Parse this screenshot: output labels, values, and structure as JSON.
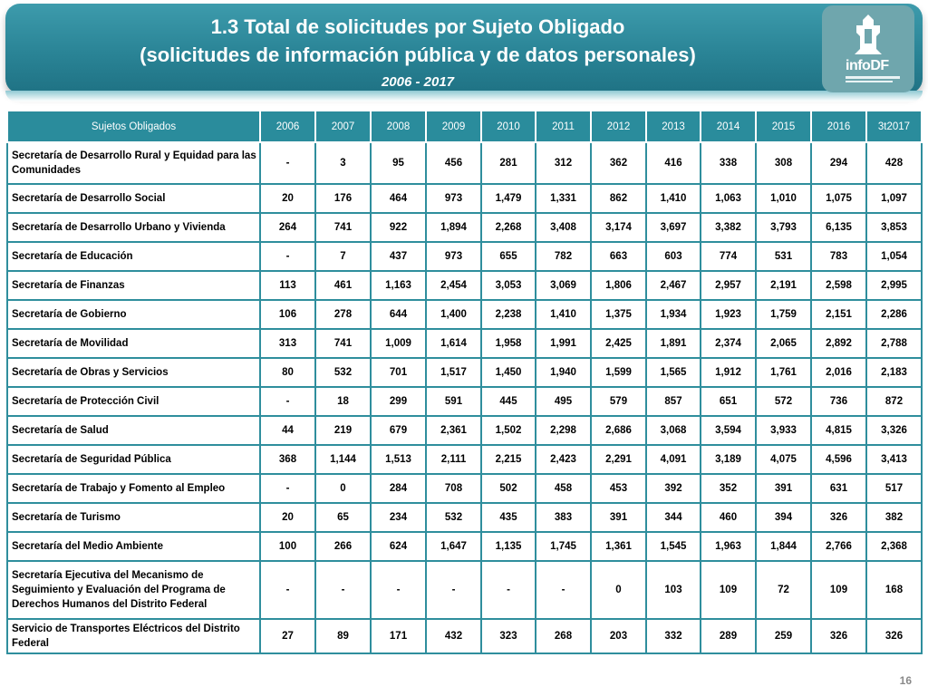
{
  "header": {
    "title_line1": "1.3 Total de solicitudes por Sujeto Obligado",
    "title_line2": "(solicitudes de información pública y de datos personales)",
    "years": "2006 - 2017"
  },
  "logo": {
    "brand": "infoDF",
    "icon": "coat-of-arms-icon"
  },
  "table": {
    "columns": [
      "Sujetos Obligados",
      "2006",
      "2007",
      "2008",
      "2009",
      "2010",
      "2011",
      "2012",
      "2013",
      "2014",
      "2015",
      "2016",
      "3t2017"
    ],
    "rows": [
      {
        "name": "Secretaría de Desarrollo Rural y Equidad para las Comunidades",
        "values": [
          "-",
          "3",
          "95",
          "456",
          "281",
          "312",
          "362",
          "416",
          "338",
          "308",
          "294",
          "428"
        ]
      },
      {
        "name": "Secretaría de Desarrollo Social",
        "values": [
          "20",
          "176",
          "464",
          "973",
          "1,479",
          "1,331",
          "862",
          "1,410",
          "1,063",
          "1,010",
          "1,075",
          "1,097"
        ]
      },
      {
        "name": "Secretaría de Desarrollo Urbano y Vivienda",
        "values": [
          "264",
          "741",
          "922",
          "1,894",
          "2,268",
          "3,408",
          "3,174",
          "3,697",
          "3,382",
          "3,793",
          "6,135",
          "3,853"
        ]
      },
      {
        "name": "Secretaría de Educación",
        "values": [
          "-",
          "7",
          "437",
          "973",
          "655",
          "782",
          "663",
          "603",
          "774",
          "531",
          "783",
          "1,054"
        ]
      },
      {
        "name": "Secretaría de Finanzas",
        "values": [
          "113",
          "461",
          "1,163",
          "2,454",
          "3,053",
          "3,069",
          "1,806",
          "2,467",
          "2,957",
          "2,191",
          "2,598",
          "2,995"
        ]
      },
      {
        "name": "Secretaría de Gobierno",
        "values": [
          "106",
          "278",
          "644",
          "1,400",
          "2,238",
          "1,410",
          "1,375",
          "1,934",
          "1,923",
          "1,759",
          "2,151",
          "2,286"
        ]
      },
      {
        "name": "Secretaría de Movilidad",
        "values": [
          "313",
          "741",
          "1,009",
          "1,614",
          "1,958",
          "1,991",
          "2,425",
          "1,891",
          "2,374",
          "2,065",
          "2,892",
          "2,788"
        ]
      },
      {
        "name": "Secretaría de Obras y Servicios",
        "values": [
          "80",
          "532",
          "701",
          "1,517",
          "1,450",
          "1,940",
          "1,599",
          "1,565",
          "1,912",
          "1,761",
          "2,016",
          "2,183"
        ]
      },
      {
        "name": "Secretaría de Protección Civil",
        "values": [
          "-",
          "18",
          "299",
          "591",
          "445",
          "495",
          "579",
          "857",
          "651",
          "572",
          "736",
          "872"
        ]
      },
      {
        "name": "Secretaría de Salud",
        "values": [
          "44",
          "219",
          "679",
          "2,361",
          "1,502",
          "2,298",
          "2,686",
          "3,068",
          "3,594",
          "3,933",
          "4,815",
          "3,326"
        ]
      },
      {
        "name": "Secretaría de Seguridad Pública",
        "values": [
          "368",
          "1,144",
          "1,513",
          "2,111",
          "2,215",
          "2,423",
          "2,291",
          "4,091",
          "3,189",
          "4,075",
          "4,596",
          "3,413"
        ]
      },
      {
        "name": "Secretaría de Trabajo y Fomento al Empleo",
        "values": [
          "-",
          "0",
          "284",
          "708",
          "502",
          "458",
          "453",
          "392",
          "352",
          "391",
          "631",
          "517"
        ]
      },
      {
        "name": "Secretaría de Turismo",
        "values": [
          "20",
          "65",
          "234",
          "532",
          "435",
          "383",
          "391",
          "344",
          "460",
          "394",
          "326",
          "382"
        ]
      },
      {
        "name": "Secretaría del Medio Ambiente",
        "values": [
          "100",
          "266",
          "624",
          "1,647",
          "1,135",
          "1,745",
          "1,361",
          "1,545",
          "1,963",
          "1,844",
          "2,766",
          "2,368"
        ]
      },
      {
        "name": "Secretaría Ejecutiva del Mecanismo de Seguimiento y Evaluación del Programa de Derechos Humanos del Distrito Federal",
        "values": [
          "-",
          "-",
          "-",
          "-",
          "-",
          "-",
          "0",
          "103",
          "109",
          "72",
          "109",
          "168"
        ]
      },
      {
        "name": "Servicio de Transportes Eléctricos del Distrito Federal",
        "values": [
          "27",
          "89",
          "171",
          "432",
          "323",
          "268",
          "203",
          "332",
          "289",
          "259",
          "326",
          "326"
        ]
      }
    ]
  },
  "footer": {
    "page_number": "16"
  }
}
